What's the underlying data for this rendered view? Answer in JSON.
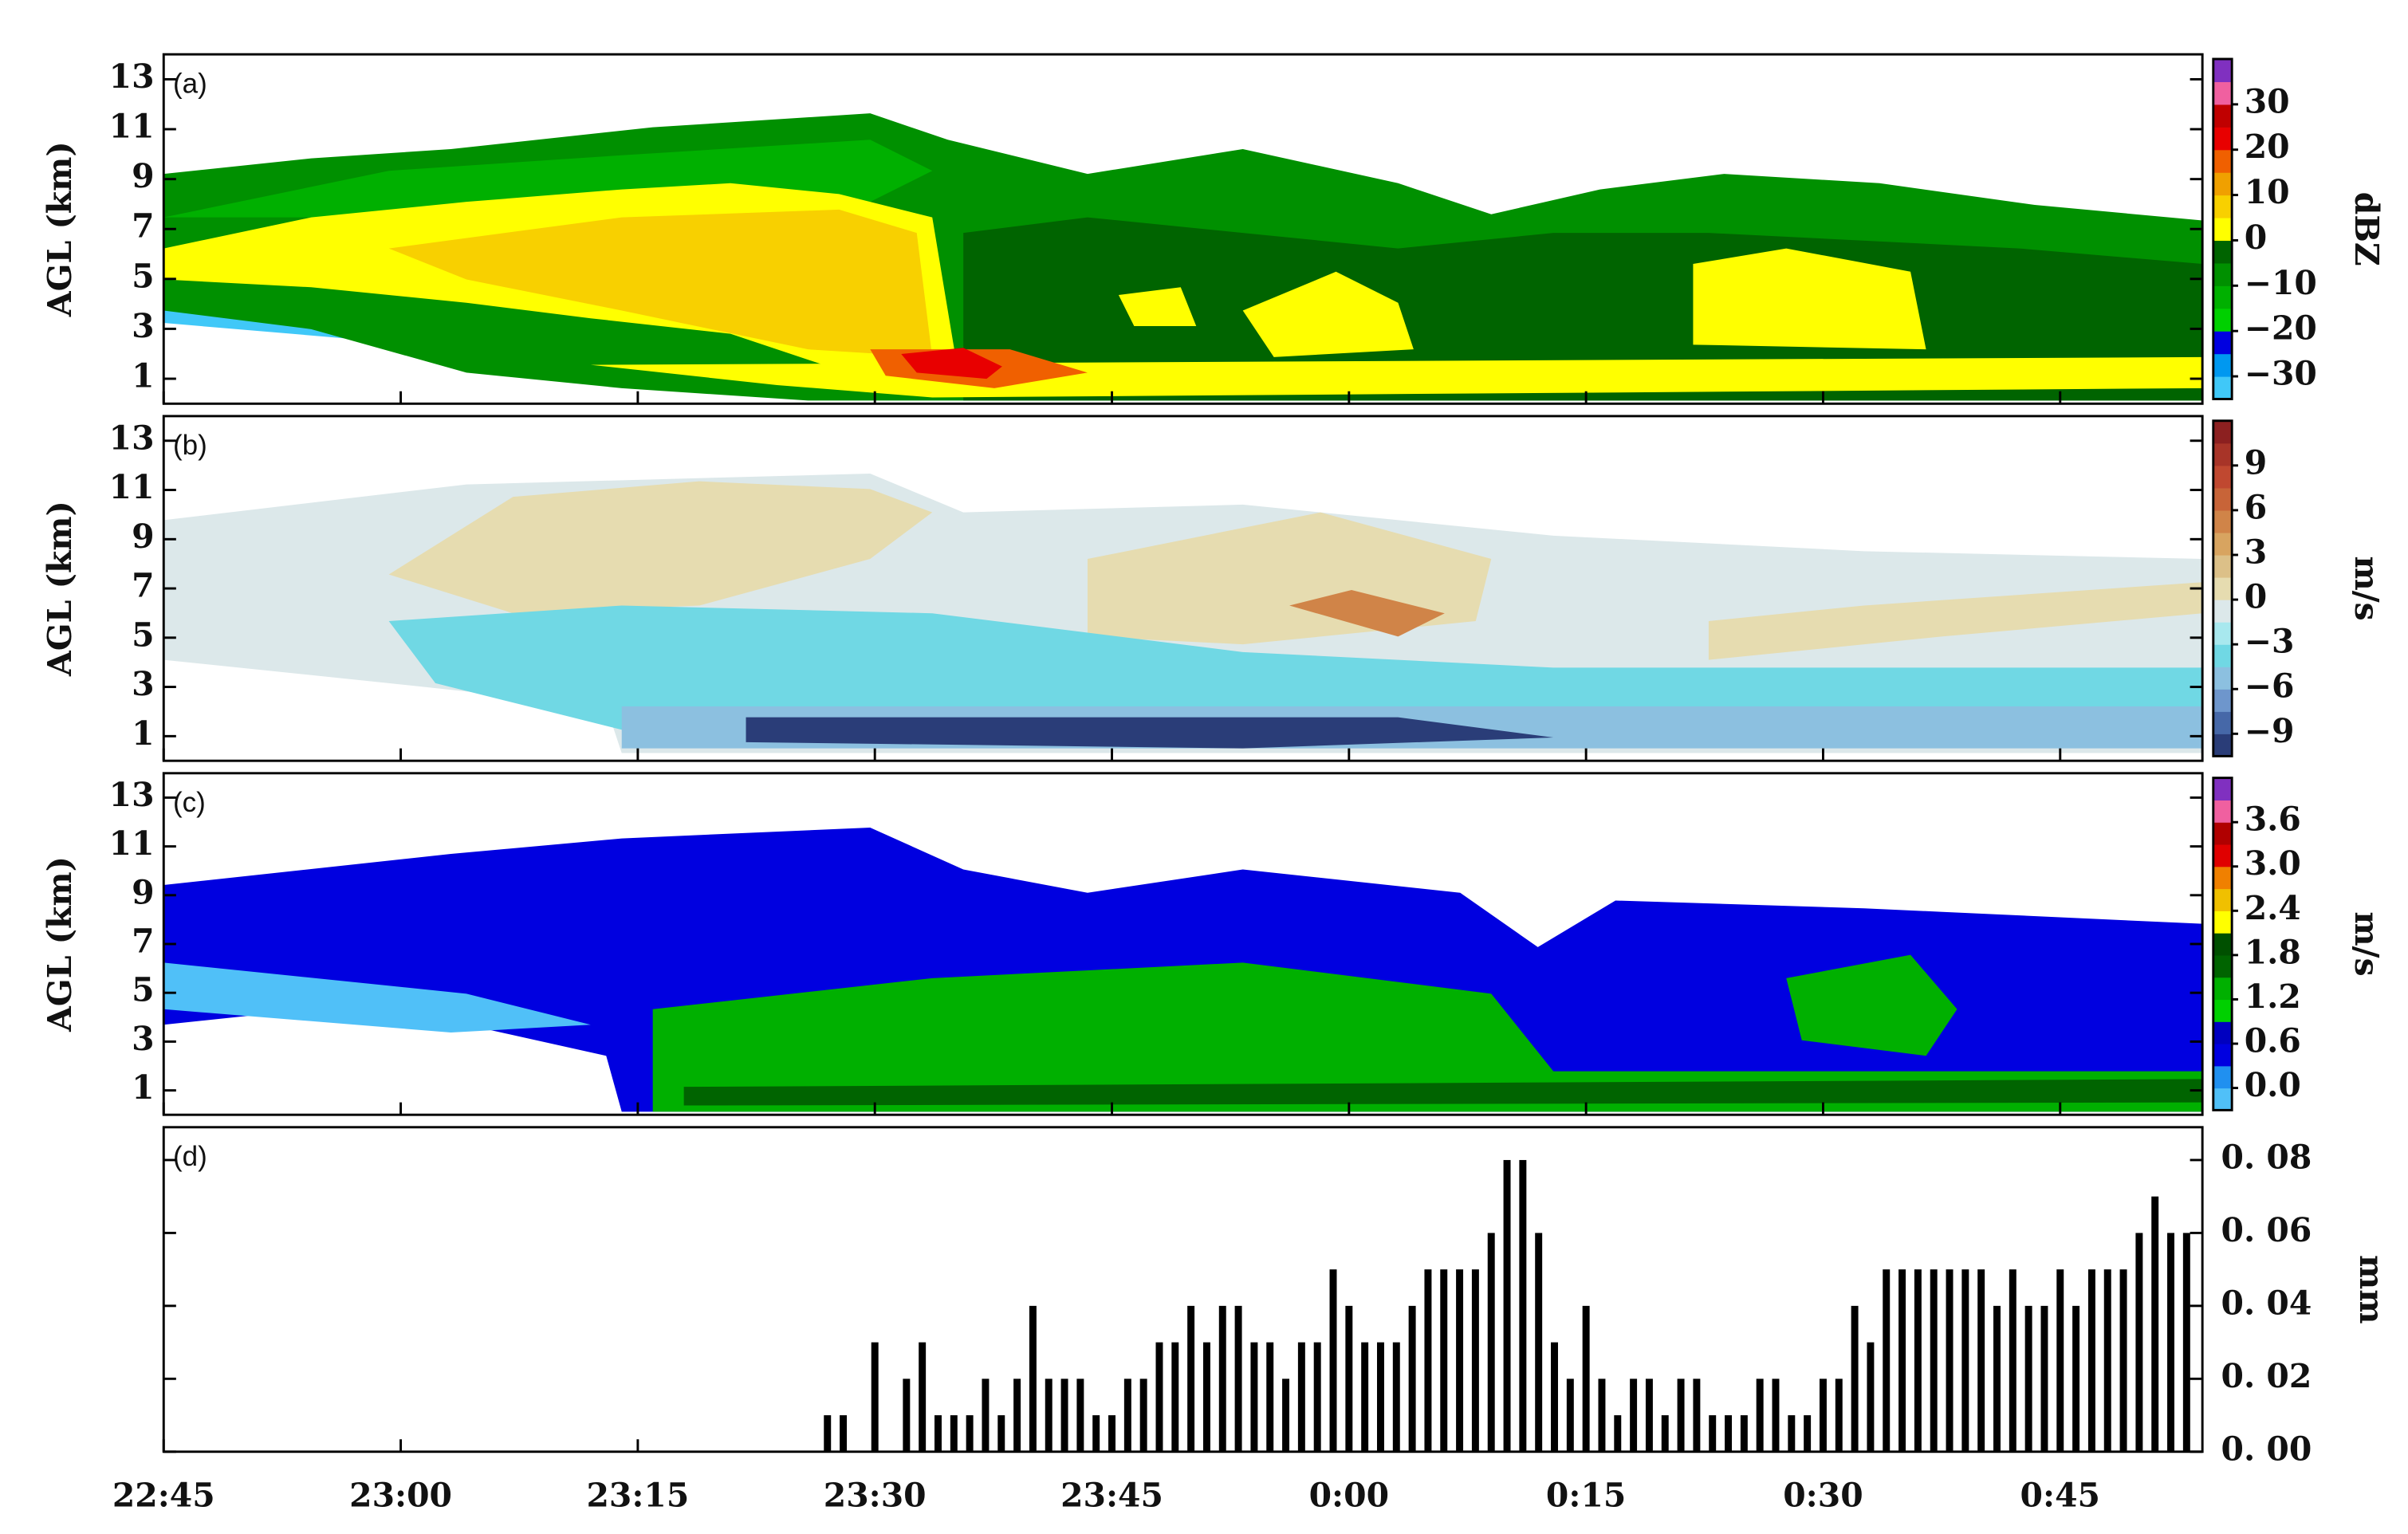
{
  "chart_data": [
    {
      "type": "heatmap",
      "label": "(a)",
      "ylabel": "AGL (km)",
      "ylim": [
        0,
        14
      ],
      "yticks": [
        1,
        3,
        5,
        7,
        9,
        11,
        13
      ],
      "colorbar": {
        "label": "dBZ",
        "clim": [
          -35,
          40
        ],
        "ticks": [
          {
            "value": -30,
            "label": "−30"
          },
          {
            "value": -20,
            "label": "−20"
          },
          {
            "value": -10,
            "label": "−10"
          },
          0,
          10,
          20,
          30
        ],
        "colors": [
          "#40c8f8",
          "#0098f0",
          "#0000e0",
          "#00d000",
          "#00b000",
          "#009000",
          "#006400",
          "#ffff00",
          "#f8d000",
          "#f0a000",
          "#f06000",
          "#e80000",
          "#c00000",
          "#f060a0",
          "#8030c0"
        ]
      }
    },
    {
      "type": "heatmap",
      "label": "(b)",
      "ylabel": "AGL (km)",
      "ylim": [
        0,
        14
      ],
      "yticks": [
        1,
        3,
        5,
        7,
        9,
        11,
        13
      ],
      "colorbar": {
        "label": "m/s",
        "clim": [
          -10.5,
          12
        ],
        "ticks": [
          {
            "value": -9,
            "label": "−9"
          },
          {
            "value": -6,
            "label": "−6"
          },
          {
            "value": -3,
            "label": "−3"
          },
          0,
          3,
          6,
          9
        ],
        "colors": [
          "#2a3d78",
          "#4668a8",
          "#6e96cc",
          "#8cc0e0",
          "#70d8e4",
          "#a8e8ee",
          "#dce8ea",
          "#e6dcb0",
          "#dcc088",
          "#d8a460",
          "#d08448",
          "#c86438",
          "#c04830",
          "#a83428",
          "#8c2020"
        ]
      }
    },
    {
      "type": "heatmap",
      "label": "(c)",
      "ylabel": "AGL (km)",
      "ylim": [
        0,
        14
      ],
      "yticks": [
        1,
        3,
        5,
        7,
        9,
        11,
        13
      ],
      "colorbar": {
        "label": "m/s",
        "clim": [
          -0.3,
          4.2
        ],
        "ticks": [
          {
            "value": 0,
            "label": "0.0"
          },
          0.6,
          1.2,
          1.8,
          2.4,
          {
            "value": 3,
            "label": "3.0"
          },
          3.6
        ],
        "colors": [
          "#50c0f8",
          "#2090f0",
          "#0000e0",
          "#0000c0",
          "#00d000",
          "#00b000",
          "#006400",
          "#005000",
          "#ffff00",
          "#f0c000",
          "#f08000",
          "#e00000",
          "#b00000",
          "#f060a0",
          "#8030c0"
        ]
      }
    },
    {
      "type": "bar",
      "label": "(d)",
      "ylabel": "mm",
      "color": "#000000",
      "xlim": [
        "22:45",
        "0:54"
      ],
      "xticks": [
        "22:45",
        "23:00",
        "23:15",
        "23:30",
        "23:45",
        "0:00",
        "0:15",
        "0:30",
        "0:45"
      ],
      "ylim": [
        0,
        0.089
      ],
      "yticks": [
        {
          "value": 0,
          "label": "0. 00"
        },
        {
          "value": 0.02,
          "label": "0. 02"
        },
        {
          "value": 0.04,
          "label": "0. 04"
        },
        {
          "value": 0.06,
          "label": "0. 06"
        },
        {
          "value": 0.08,
          "label": "0. 08"
        }
      ],
      "x": [
        "23:27",
        "23:28",
        "23:30",
        "23:32",
        "23:33",
        "23:34",
        "23:35",
        "23:36",
        "23:37",
        "23:38",
        "23:39",
        "23:40",
        "23:41",
        "23:42",
        "23:43",
        "23:44",
        "23:45",
        "23:46",
        "23:47",
        "23:48",
        "23:49",
        "23:50",
        "23:51",
        "23:52",
        "23:53",
        "23:54",
        "23:55",
        "23:56",
        "23:57",
        "23:58",
        "23:59",
        "0:00",
        "0:01",
        "0:02",
        "0:03",
        "0:04",
        "0:05",
        "0:06",
        "0:07",
        "0:08",
        "0:09",
        "0:10",
        "0:11",
        "0:12",
        "0:13",
        "0:14",
        "0:15",
        "0:16",
        "0:17",
        "0:18",
        "0:19",
        "0:20",
        "0:21",
        "0:22",
        "0:23",
        "0:24",
        "0:25",
        "0:26",
        "0:27",
        "0:28",
        "0:29",
        "0:30",
        "0:31",
        "0:32",
        "0:33",
        "0:34",
        "0:35",
        "0:36",
        "0:37",
        "0:38",
        "0:39",
        "0:40",
        "0:41",
        "0:42",
        "0:43",
        "0:44",
        "0:45",
        "0:46",
        "0:47",
        "0:48",
        "0:49",
        "0:50",
        "0:51",
        "0:52",
        "0:53"
      ],
      "values": [
        0.01,
        0.01,
        0.03,
        0.02,
        0.03,
        0.01,
        0.01,
        0.01,
        0.02,
        0.01,
        0.02,
        0.04,
        0.02,
        0.02,
        0.02,
        0.01,
        0.01,
        0.02,
        0.02,
        0.03,
        0.03,
        0.04,
        0.03,
        0.04,
        0.04,
        0.03,
        0.03,
        0.02,
        0.03,
        0.03,
        0.05,
        0.04,
        0.03,
        0.03,
        0.03,
        0.04,
        0.05,
        0.05,
        0.05,
        0.05,
        0.06,
        0.08,
        0.08,
        0.06,
        0.03,
        0.02,
        0.04,
        0.02,
        0.01,
        0.02,
        0.02,
        0.01,
        0.02,
        0.02,
        0.01,
        0.01,
        0.01,
        0.02,
        0.02,
        0.01,
        0.01,
        0.02,
        0.02,
        0.04,
        0.03,
        0.05,
        0.05,
        0.05,
        0.05,
        0.05,
        0.05,
        0.05,
        0.04,
        0.05,
        0.04,
        0.04,
        0.05,
        0.04,
        0.05,
        0.05,
        0.05,
        0.06,
        0.07,
        0.06,
        0.06
      ]
    }
  ]
}
